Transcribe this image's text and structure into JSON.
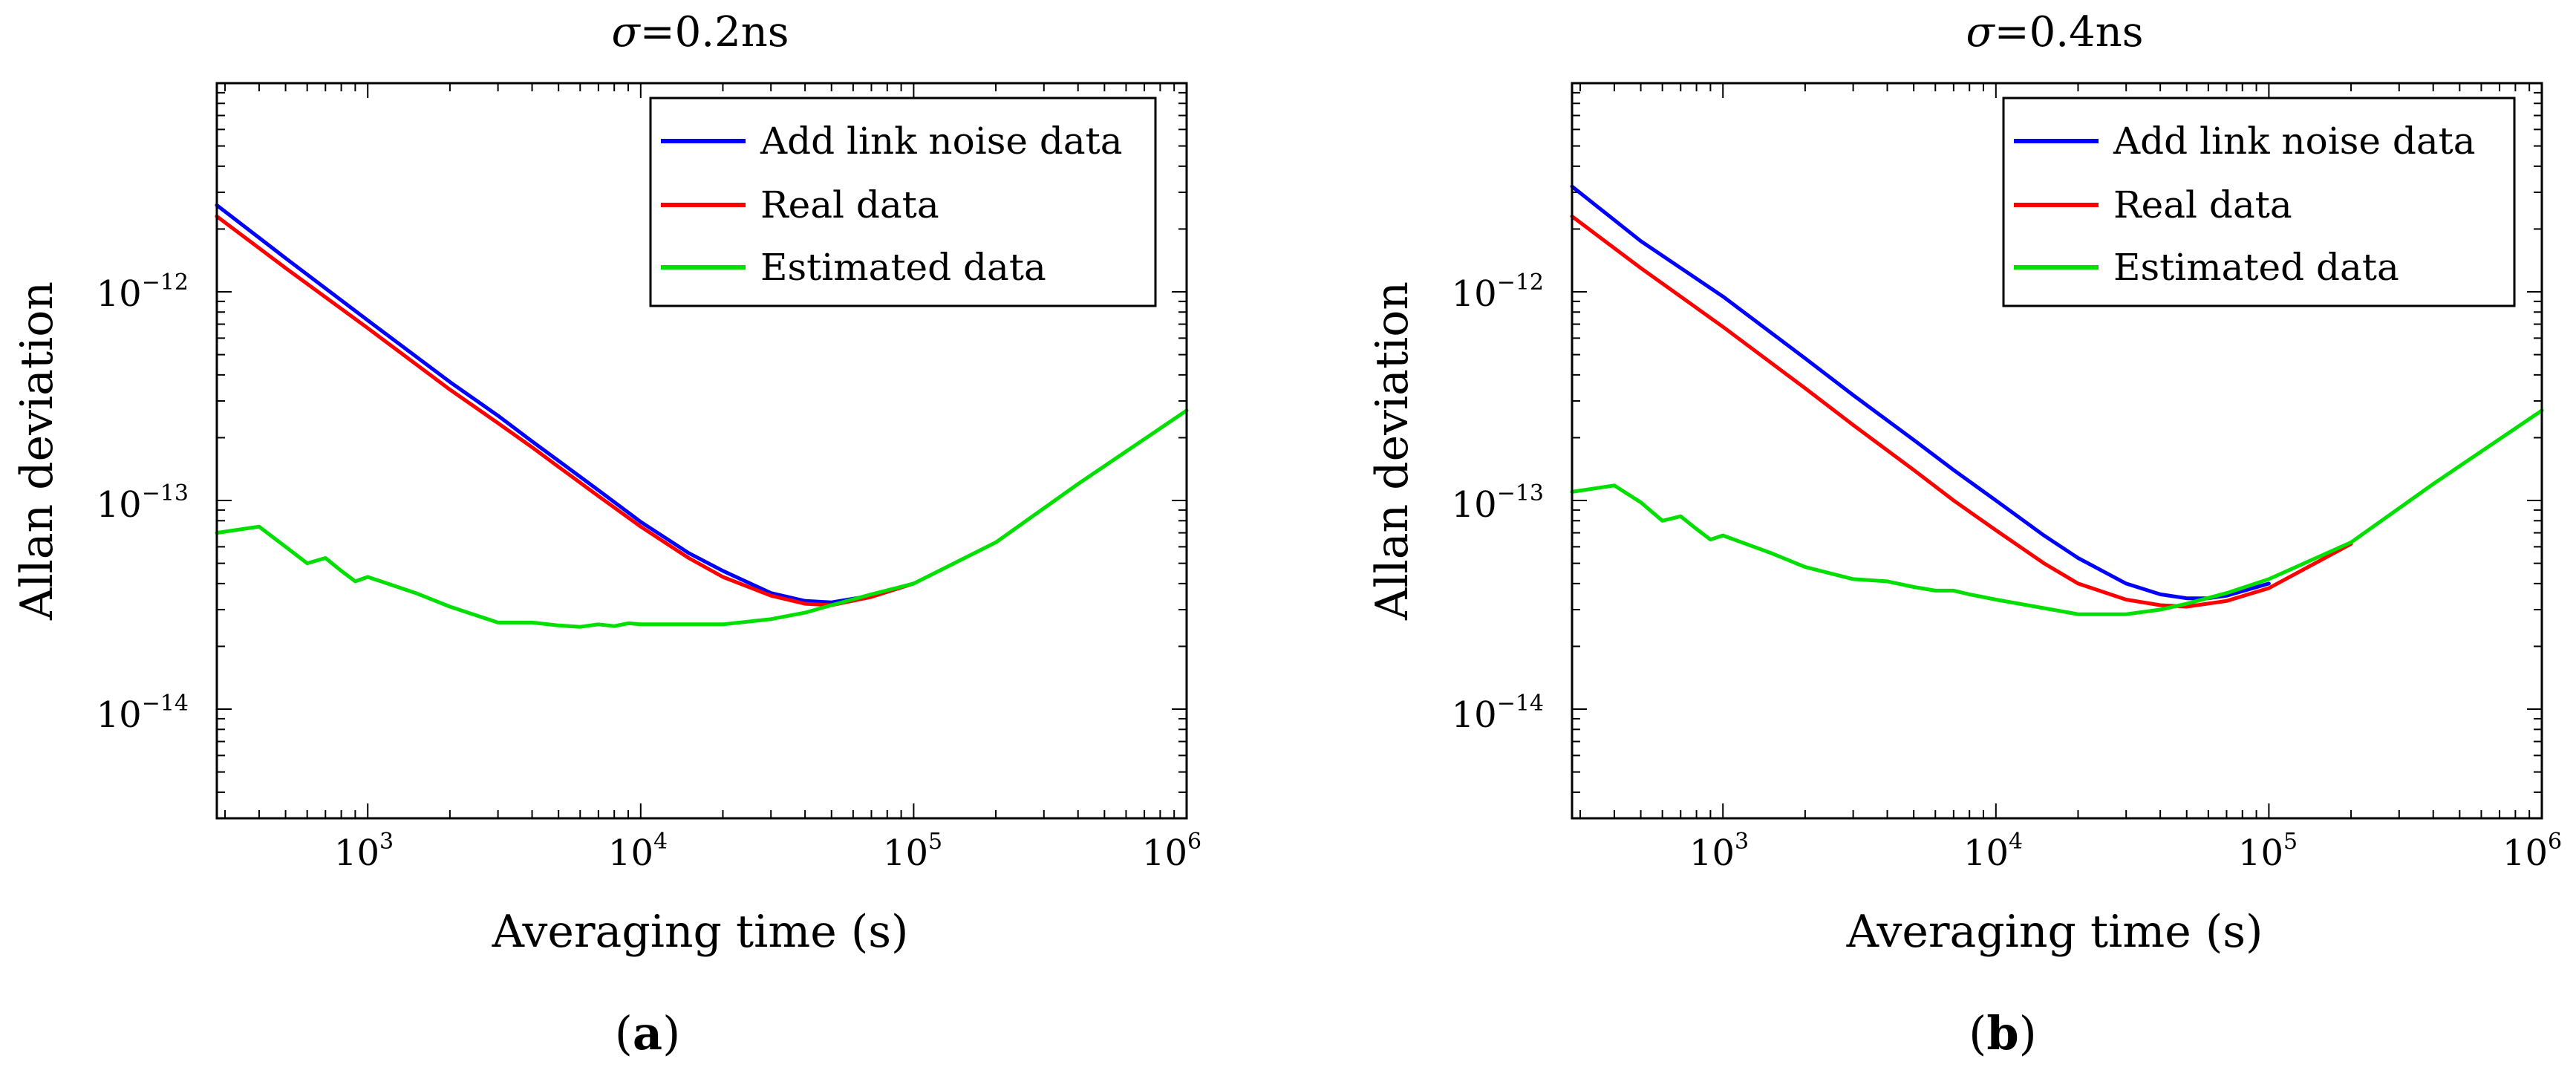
{
  "chart_data": [
    {
      "type": "line",
      "title_symbol": "σ",
      "title_value": "=0.2ns",
      "xlabel": "Averaging time (s)",
      "ylabel": "Allan deviation",
      "xscale": "log",
      "yscale": "log",
      "xlim": [
        280,
        1000000
      ],
      "ylim": [
        3e-15,
        1e-11
      ],
      "xticks": [
        {
          "base": "10",
          "exp": "3",
          "value": 1000
        },
        {
          "base": "10",
          "exp": "4",
          "value": 10000
        },
        {
          "base": "10",
          "exp": "5",
          "value": 100000
        },
        {
          "base": "10",
          "exp": "6",
          "value": 1000000
        }
      ],
      "yticks": [
        {
          "base": "10",
          "exp": "−12",
          "value": 1e-12
        },
        {
          "base": "10",
          "exp": "−13",
          "value": 1e-13
        },
        {
          "base": "10",
          "exp": "−14",
          "value": 1e-14
        }
      ],
      "caption_open": "(",
      "caption_letter": "a",
      "caption_close": ")",
      "legend_position": "top-right",
      "series": [
        {
          "name": "Add link noise data",
          "color": "#0000ff",
          "x": [
            280,
            500,
            1000,
            2000,
            3000,
            4000,
            5000,
            7000,
            10000,
            15000,
            20000,
            30000,
            40000,
            50000,
            70000,
            100000
          ],
          "y": [
            2.6e-12,
            1.45e-12,
            7.3e-13,
            3.7e-13,
            2.55e-13,
            1.92e-13,
            1.55e-13,
            1.12e-13,
            7.9e-14,
            5.6e-14,
            4.6e-14,
            3.6e-14,
            3.3e-14,
            3.25e-14,
            3.5e-14,
            4e-14
          ]
        },
        {
          "name": "Real data",
          "color": "#ff0000",
          "x": [
            280,
            500,
            1000,
            2000,
            3000,
            4000,
            5000,
            7000,
            10000,
            15000,
            20000,
            30000,
            40000,
            50000,
            70000,
            100000
          ],
          "y": [
            2.3e-12,
            1.3e-12,
            6.7e-13,
            3.4e-13,
            2.35e-13,
            1.8e-13,
            1.45e-13,
            1.05e-13,
            7.5e-14,
            5.3e-14,
            4.3e-14,
            3.5e-14,
            3.2e-14,
            3.15e-14,
            3.45e-14,
            4e-14
          ]
        },
        {
          "name": "Estimated data",
          "color": "#00e000",
          "x": [
            280,
            400,
            500,
            600,
            700,
            800,
            900,
            1000,
            1500,
            2000,
            3000,
            4000,
            5000,
            6000,
            7000,
            8000,
            9000,
            10000,
            15000,
            20000,
            30000,
            40000,
            50000,
            70000,
            100000,
            200000,
            400000,
            1000000
          ],
          "y": [
            7e-14,
            7.5e-14,
            6e-14,
            5e-14,
            5.3e-14,
            4.6e-14,
            4.1e-14,
            4.3e-14,
            3.6e-14,
            3.1e-14,
            2.6e-14,
            2.6e-14,
            2.52e-14,
            2.48e-14,
            2.55e-14,
            2.5e-14,
            2.58e-14,
            2.55e-14,
            2.55e-14,
            2.55e-14,
            2.7e-14,
            2.9e-14,
            3.15e-14,
            3.55e-14,
            4e-14,
            6.3e-14,
            1.2e-13,
            2.7e-13
          ]
        }
      ]
    },
    {
      "type": "line",
      "title_symbol": "σ",
      "title_value": "=0.4ns",
      "xlabel": "Averaging time (s)",
      "ylabel": "Allan deviation",
      "xscale": "log",
      "yscale": "log",
      "xlim": [
        280,
        1000000
      ],
      "ylim": [
        3e-15,
        1e-11
      ],
      "xticks": [
        {
          "base": "10",
          "exp": "3",
          "value": 1000
        },
        {
          "base": "10",
          "exp": "4",
          "value": 10000
        },
        {
          "base": "10",
          "exp": "5",
          "value": 100000
        },
        {
          "base": "10",
          "exp": "6",
          "value": 1000000
        }
      ],
      "yticks": [
        {
          "base": "10",
          "exp": "−12",
          "value": 1e-12
        },
        {
          "base": "10",
          "exp": "−13",
          "value": 1e-13
        },
        {
          "base": "10",
          "exp": "−14",
          "value": 1e-14
        }
      ],
      "caption_open": "(",
      "caption_letter": "b",
      "caption_close": ")",
      "legend_position": "top-right",
      "series": [
        {
          "name": "Add link noise data",
          "color": "#0000ff",
          "x": [
            280,
            500,
            1000,
            2000,
            3000,
            5000,
            7000,
            10000,
            15000,
            20000,
            30000,
            40000,
            50000,
            60000,
            70000,
            100000
          ],
          "y": [
            3.2e-12,
            1.75e-12,
            9.5e-13,
            4.8e-13,
            3.2e-13,
            1.95e-13,
            1.4e-13,
            1e-13,
            6.8e-14,
            5.3e-14,
            4e-14,
            3.55e-14,
            3.4e-14,
            3.4e-14,
            3.5e-14,
            4e-14
          ]
        },
        {
          "name": "Real data",
          "color": "#ff0000",
          "x": [
            280,
            500,
            1000,
            2000,
            3000,
            5000,
            7000,
            10000,
            15000,
            20000,
            30000,
            40000,
            50000,
            70000,
            100000,
            200000
          ],
          "y": [
            2.3e-12,
            1.3e-12,
            6.8e-13,
            3.45e-13,
            2.3e-13,
            1.4e-13,
            1e-13,
            7.2e-14,
            5e-14,
            4e-14,
            3.35e-14,
            3.15e-14,
            3.1e-14,
            3.3e-14,
            3.8e-14,
            6.2e-14
          ]
        },
        {
          "name": "Estimated data",
          "color": "#00e000",
          "x": [
            280,
            400,
            500,
            600,
            700,
            800,
            900,
            1000,
            1500,
            2000,
            3000,
            4000,
            5000,
            6000,
            7000,
            8000,
            10000,
            15000,
            20000,
            30000,
            40000,
            50000,
            70000,
            100000,
            200000,
            400000,
            1000000
          ],
          "y": [
            1.1e-13,
            1.18e-13,
            9.8e-14,
            8e-14,
            8.4e-14,
            7.3e-14,
            6.5e-14,
            6.8e-14,
            5.6e-14,
            4.8e-14,
            4.2e-14,
            4.1e-14,
            3.85e-14,
            3.7e-14,
            3.7e-14,
            3.55e-14,
            3.35e-14,
            3.05e-14,
            2.85e-14,
            2.85e-14,
            3e-14,
            3.2e-14,
            3.6e-14,
            4.2e-14,
            6.3e-14,
            1.2e-13,
            2.7e-13
          ]
        }
      ]
    }
  ]
}
